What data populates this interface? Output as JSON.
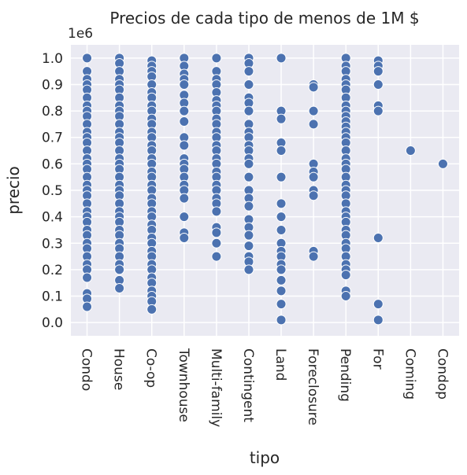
{
  "chart_data": {
    "type": "scatter",
    "title": "Precios de cada tipo de menos de 1M $",
    "y_offset_label": "1e6",
    "xlabel": "tipo",
    "ylabel": "precio",
    "color": "#4c72b0",
    "grid": true,
    "categories": [
      "Condo",
      "House",
      "Co-op",
      "Townhouse",
      "Multi-family",
      "Contingent",
      "Land",
      "Foreclosure",
      "Pending",
      "For",
      "Coming",
      "Condop"
    ],
    "values": [
      [
        1.0,
        0.95,
        0.92,
        0.9,
        0.88,
        0.85,
        0.82,
        0.8,
        0.78,
        0.75,
        0.72,
        0.7,
        0.68,
        0.65,
        0.62,
        0.6,
        0.58,
        0.55,
        0.52,
        0.5,
        0.48,
        0.45,
        0.42,
        0.4,
        0.38,
        0.35,
        0.33,
        0.3,
        0.28,
        0.25,
        0.22,
        0.2,
        0.17,
        0.11,
        0.09,
        0.06
      ],
      [
        1.0,
        0.98,
        0.95,
        0.92,
        0.9,
        0.88,
        0.85,
        0.82,
        0.8,
        0.78,
        0.75,
        0.72,
        0.7,
        0.68,
        0.65,
        0.62,
        0.6,
        0.58,
        0.55,
        0.52,
        0.5,
        0.48,
        0.45,
        0.42,
        0.4,
        0.38,
        0.35,
        0.33,
        0.3,
        0.28,
        0.25,
        0.22,
        0.2,
        0.16,
        0.13
      ],
      [
        0.99,
        0.97,
        0.95,
        0.93,
        0.9,
        0.87,
        0.85,
        0.82,
        0.8,
        0.77,
        0.75,
        0.72,
        0.7,
        0.67,
        0.65,
        0.62,
        0.6,
        0.57,
        0.55,
        0.52,
        0.5,
        0.47,
        0.45,
        0.42,
        0.4,
        0.37,
        0.35,
        0.32,
        0.3,
        0.27,
        0.25,
        0.22,
        0.2,
        0.17,
        0.15,
        0.12,
        0.1,
        0.08,
        0.05
      ],
      [
        1.0,
        0.97,
        0.94,
        0.92,
        0.9,
        0.86,
        0.83,
        0.8,
        0.76,
        0.7,
        0.67,
        0.62,
        0.6,
        0.58,
        0.55,
        0.52,
        0.5,
        0.47,
        0.4,
        0.34,
        0.32
      ],
      [
        1.0,
        0.95,
        0.92,
        0.9,
        0.87,
        0.84,
        0.82,
        0.8,
        0.77,
        0.75,
        0.72,
        0.7,
        0.67,
        0.65,
        0.62,
        0.6,
        0.57,
        0.55,
        0.52,
        0.5,
        0.47,
        0.45,
        0.42,
        0.36,
        0.34,
        0.3,
        0.25
      ],
      [
        1.0,
        0.98,
        0.95,
        0.9,
        0.85,
        0.83,
        0.8,
        0.75,
        0.72,
        0.7,
        0.67,
        0.65,
        0.62,
        0.6,
        0.55,
        0.5,
        0.47,
        0.44,
        0.39,
        0.36,
        0.33,
        0.29,
        0.25,
        0.23,
        0.2
      ],
      [
        1.0,
        0.8,
        0.77,
        0.68,
        0.65,
        0.55,
        0.45,
        0.4,
        0.35,
        0.3,
        0.27,
        0.25,
        0.22,
        0.2,
        0.16,
        0.12,
        0.07,
        0.01
      ],
      [
        0.9,
        0.89,
        0.8,
        0.75,
        0.6,
        0.57,
        0.55,
        0.5,
        0.48,
        0.27,
        0.25
      ],
      [
        1.0,
        0.97,
        0.95,
        0.92,
        0.9,
        0.88,
        0.85,
        0.82,
        0.8,
        0.78,
        0.76,
        0.74,
        0.72,
        0.7,
        0.68,
        0.65,
        0.62,
        0.6,
        0.58,
        0.55,
        0.52,
        0.5,
        0.48,
        0.45,
        0.42,
        0.4,
        0.38,
        0.35,
        0.33,
        0.3,
        0.28,
        0.25,
        0.22,
        0.2,
        0.18,
        0.12,
        0.1
      ],
      [
        0.99,
        0.97,
        0.95,
        0.9,
        0.82,
        0.8,
        0.32,
        0.07,
        0.01
      ],
      [
        0.65
      ],
      [
        0.6
      ]
    ],
    "ylim": [
      -0.05,
      1.05
    ],
    "yticks": [
      {
        "value": 0,
        "label": "0.0"
      },
      0.1,
      0.2,
      0.3,
      0.4,
      0.5,
      0.6,
      0.7,
      0.8,
      0.9,
      {
        "value": 1,
        "label": "1.0"
      }
    ]
  }
}
